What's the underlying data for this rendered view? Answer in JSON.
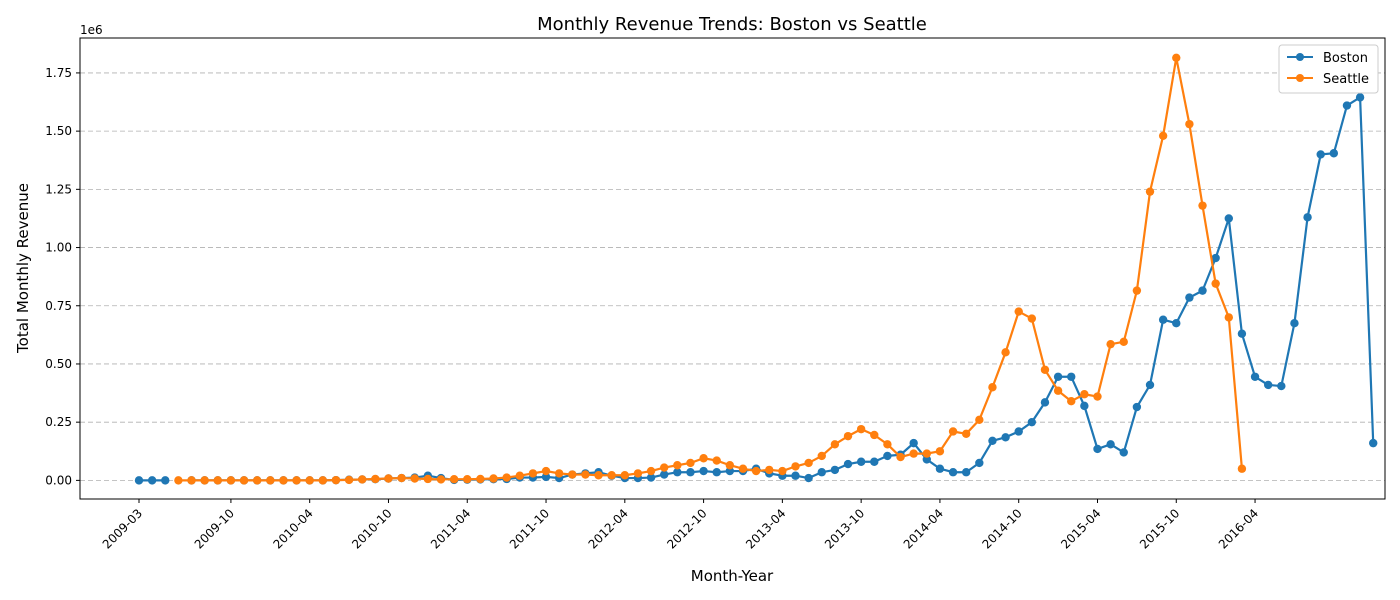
{
  "chart_data": {
    "type": "line",
    "title": "Monthly Revenue Trends: Boston vs Seattle",
    "xlabel": "Month-Year",
    "ylabel": "Total Monthly Revenue",
    "offset_label": "1e6",
    "x_tick_labels": [
      "2009-03",
      "2009-10",
      "2010-04",
      "2010-10",
      "2011-04",
      "2011-10",
      "2012-04",
      "2012-10",
      "2013-04",
      "2013-10",
      "2014-04",
      "2014-10",
      "2015-04",
      "2015-10",
      "2016-04"
    ],
    "y_tick_labels": [
      "0.00",
      "0.25",
      "0.50",
      "0.75",
      "1.00",
      "1.25",
      "1.50",
      "1.75"
    ],
    "ylim": [
      -0.08,
      1.9
    ],
    "grid": "y-axis dashed",
    "legend_position": "top-right",
    "x_start": "2009-03",
    "colors": {
      "Boston": "#1f77b4",
      "Seattle": "#ff7f0e"
    },
    "series": [
      {
        "name": "Boston",
        "start": "2009-03",
        "values": [
          0.0,
          0.0,
          0.0,
          null,
          0.0,
          0.0,
          0.0,
          0.0,
          0.0,
          0.0,
          0.0,
          0.0,
          0.0,
          0.0,
          0.0,
          0.001,
          0.003,
          0.004,
          0.005,
          0.008,
          0.01,
          0.012,
          0.02,
          0.01,
          0.002,
          0.003,
          0.004,
          0.005,
          0.006,
          0.012,
          0.012,
          0.015,
          0.01,
          0.025,
          0.03,
          0.035,
          0.02,
          0.01,
          0.01,
          0.012,
          0.025,
          0.035,
          0.035,
          0.04,
          0.035,
          0.04,
          0.04,
          0.05,
          0.03,
          0.02,
          0.02,
          0.01,
          0.035,
          0.045,
          0.07,
          0.08,
          0.08,
          0.105,
          0.11,
          0.16,
          0.09,
          0.05,
          0.035,
          0.035,
          0.075,
          0.17,
          0.185,
          0.21,
          0.25,
          0.335,
          0.445,
          0.445,
          0.32,
          0.135,
          0.155,
          0.12,
          0.315,
          0.41,
          0.69,
          0.675,
          0.785,
          0.815,
          0.955,
          1.125,
          0.63,
          0.445,
          0.41,
          0.405,
          0.675,
          1.13,
          1.4,
          1.405,
          1.61,
          1.645,
          0.16
        ]
      },
      {
        "name": "Seattle",
        "start": "2009-03",
        "values": [
          null,
          null,
          null,
          0.0,
          0.0,
          0.0,
          0.0,
          0.0,
          0.0,
          0.0,
          0.0,
          0.0,
          0.0,
          0.0,
          0.0,
          0.001,
          0.002,
          0.004,
          0.006,
          0.008,
          0.01,
          0.008,
          0.006,
          0.004,
          0.005,
          0.005,
          0.006,
          0.008,
          0.012,
          0.02,
          0.03,
          0.04,
          0.03,
          0.025,
          0.025,
          0.022,
          0.022,
          0.022,
          0.03,
          0.04,
          0.055,
          0.065,
          0.075,
          0.095,
          0.085,
          0.065,
          0.05,
          0.04,
          0.045,
          0.04,
          0.06,
          0.075,
          0.105,
          0.155,
          0.19,
          0.22,
          0.195,
          0.155,
          0.1,
          0.115,
          0.115,
          0.125,
          0.21,
          0.2,
          0.26,
          0.4,
          0.55,
          0.725,
          0.695,
          0.475,
          0.385,
          0.34,
          0.37,
          0.36,
          0.585,
          0.595,
          0.815,
          1.24,
          1.48,
          1.815,
          1.53,
          1.18,
          0.845,
          0.7,
          0.05
        ]
      }
    ]
  }
}
